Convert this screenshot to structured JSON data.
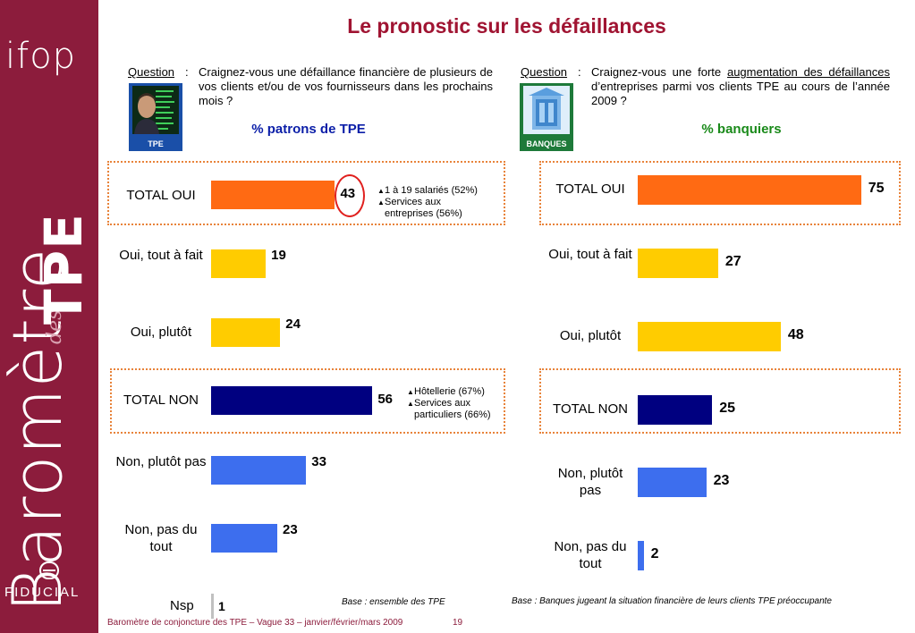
{
  "sidebar": {
    "brand_top": "ifop",
    "vertical_title_main": "Baromètre",
    "vertical_title_small": "des",
    "vertical_title_bold": "TPE",
    "brand_bottom": "FIDUCIAL"
  },
  "title": "Le pronostic sur les défaillances",
  "left_panel": {
    "question_label": "Question",
    "question_colon": ":",
    "question_text": "Craignez-vous une défaillance financière de plusieurs de vos clients et/ou de vos fournisseurs dans les prochains mois ?",
    "thumb_caption": "TPE",
    "subtitle": "% patrons de TPE",
    "note_total_oui": [
      "1 à 19 salariés (52%)",
      "Services aux entreprises (56%)"
    ],
    "note_total_non": [
      "Hôtellerie (67%)",
      "Services aux particuliers (66%)"
    ],
    "nsp_label": "Nsp",
    "nsp_value": "1",
    "base": "Base : ensemble des TPE"
  },
  "right_panel": {
    "question_label": "Question",
    "question_colon": ":",
    "question_text_a": "Craignez-vous une forte ",
    "question_text_u": "augmentation des défaillances",
    "question_text_b": " d’entreprises parmi vos clients TPE au cours de l’année 2009 ?",
    "thumb_caption": "BANQUES",
    "subtitle": "% banquiers",
    "base": "Base : Banques jugeant la situation financière de leurs clients TPE préoccupante"
  },
  "footer": {
    "text": "Baromètre de conjoncture des TPE – Vague 33 – janvier/février/mars 2009",
    "page": "19"
  },
  "colors": {
    "orange": "#ff6a13",
    "yellow": "#ffcc00",
    "navy": "#000080",
    "blue": "#3d6eee",
    "sidebar": "#8c1c3c",
    "title": "#a01432",
    "tpe_subtitle": "#0b1ea8",
    "banks_subtitle": "#1a8a1a"
  },
  "chart_data": [
    {
      "type": "bar",
      "orientation": "horizontal",
      "title": "% patrons de TPE",
      "categories": [
        "TOTAL OUI",
        "Oui, tout à fait",
        "Oui, plutôt",
        "TOTAL NON",
        "Non, plutôt pas",
        "Non, pas du tout",
        "Nsp"
      ],
      "values": [
        43,
        19,
        24,
        56,
        33,
        23,
        1
      ],
      "bar_colors": [
        "#ff6a13",
        "#ffcc00",
        "#ffcc00",
        "#000080",
        "#3d6eee",
        "#3d6eee",
        "#c0c0c0"
      ]
    },
    {
      "type": "bar",
      "orientation": "horizontal",
      "title": "% banquiers",
      "categories": [
        "TOTAL OUI",
        "Oui, tout à fait",
        "Oui, plutôt",
        "TOTAL NON",
        "Non, plutôt pas",
        "Non, pas du tout"
      ],
      "values": [
        75,
        27,
        48,
        25,
        23,
        2
      ],
      "bar_colors": [
        "#ff6a13",
        "#ffcc00",
        "#ffcc00",
        "#000080",
        "#3d6eee",
        "#3d6eee"
      ]
    }
  ]
}
